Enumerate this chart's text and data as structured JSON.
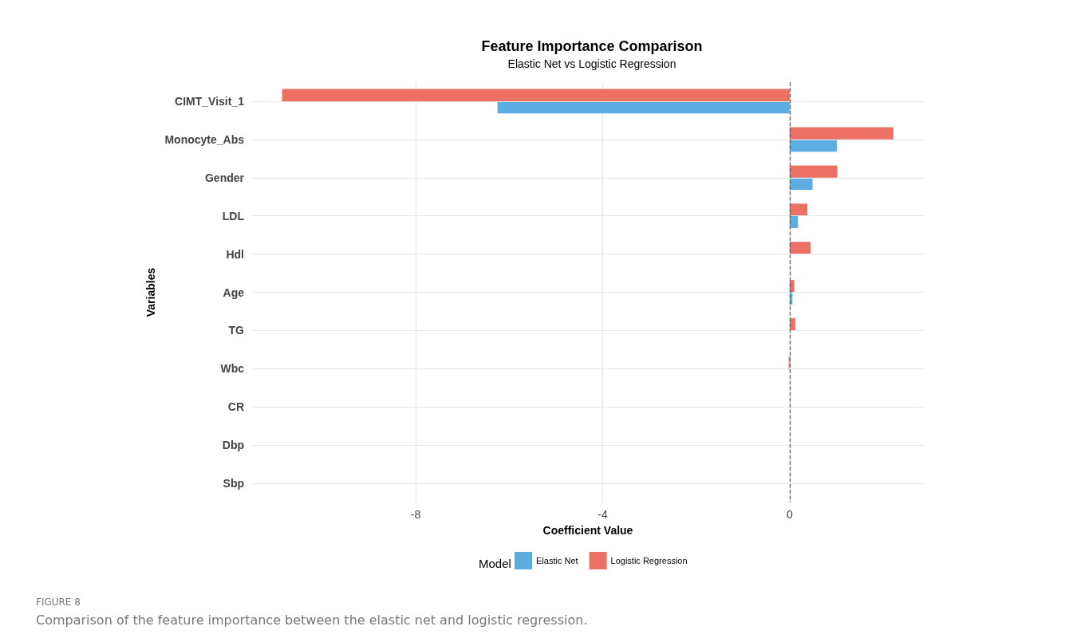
{
  "chart_data": {
    "type": "bar",
    "orientation": "horizontal",
    "title": "Feature Importance Comparison",
    "subtitle": "Elastic Net vs Logistic Regression",
    "xlabel": "Coefficient Value",
    "ylabel": "Variables",
    "legend_title": "Model",
    "legend": "bottom",
    "grid": true,
    "categories": [
      "CIMT_Visit_1",
      "Monocyte_Abs",
      "Gender",
      "LDL",
      "Hdl",
      "Age",
      "TG",
      "Wbc",
      "CR",
      "Dbp",
      "Sbp"
    ],
    "series": [
      {
        "name": "Elastic Net",
        "color": "#5dade2",
        "values": [
          -6.25,
          1.01,
          0.49,
          0.18,
          0,
          0.06,
          0,
          0,
          0,
          0,
          0
        ]
      },
      {
        "name": "Logistic Regression",
        "color": "#ec7063",
        "values": [
          -10.86,
          2.22,
          1.02,
          0.38,
          0.45,
          0.1,
          0.12,
          -0.02,
          0,
          0,
          0
        ]
      }
    ],
    "xlim": [
      -11.5,
      2.87
    ],
    "xticks": [
      -8,
      -4,
      0
    ],
    "ref_lines": [
      {
        "axis": "x",
        "value": 0,
        "color": "#555555",
        "line_style": "dashed"
      }
    ],
    "annotations": [
      "FIGURE 8",
      "Comparison of the feature importance between the elastic net and logistic regression."
    ]
  }
}
